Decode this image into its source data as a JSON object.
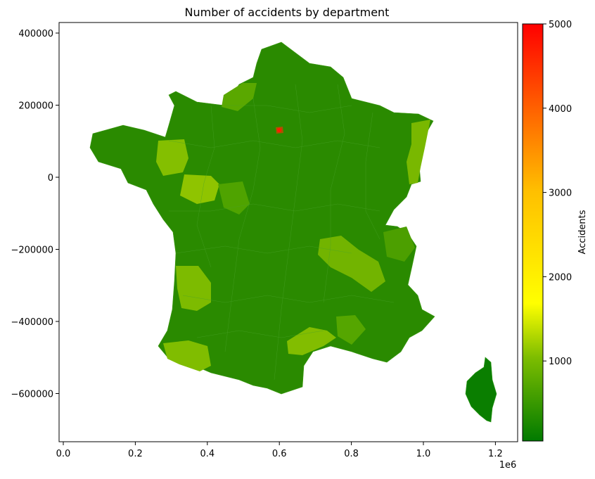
{
  "title": "Number of accidents by department",
  "axes": {
    "x_ticks": [
      {
        "value": 0.0,
        "label": "0.0"
      },
      {
        "value": 0.2,
        "label": "0.2"
      },
      {
        "value": 0.4,
        "label": "0.4"
      },
      {
        "value": 0.6,
        "label": "0.6"
      },
      {
        "value": 0.8,
        "label": "0.8"
      },
      {
        "value": 1.0,
        "label": "1.0"
      },
      {
        "value": 1.2,
        "label": "1.2"
      }
    ],
    "x_offset_label": "1e6",
    "y_ticks": [
      {
        "value": 400000,
        "label": "400000"
      },
      {
        "value": 200000,
        "label": "200000"
      },
      {
        "value": 0,
        "label": "0"
      },
      {
        "value": -200000,
        "label": "−200000"
      },
      {
        "value": -400000,
        "label": "−400000"
      },
      {
        "value": -600000,
        "label": "−600000"
      }
    ]
  },
  "colorbar": {
    "label": "Accidents",
    "min": 50,
    "max": 5000,
    "ticks": [
      {
        "value": 1000,
        "label": "1000"
      },
      {
        "value": 2000,
        "label": "2000"
      },
      {
        "value": 3000,
        "label": "3000"
      },
      {
        "value": 4000,
        "label": "4000"
      },
      {
        "value": 5000,
        "label": "5000"
      }
    ],
    "stops": [
      {
        "offset": 0.0,
        "color": "#007a00"
      },
      {
        "offset": 0.2,
        "color": "#7dbd00"
      },
      {
        "offset": 0.33,
        "color": "#ffff00"
      },
      {
        "offset": 0.6,
        "color": "#ffbf00"
      },
      {
        "offset": 1.0,
        "color": "#ff0000"
      }
    ]
  },
  "regions": [
    {
      "name": "Mainland France",
      "value": 300,
      "color": "#2a8a00"
    },
    {
      "name": "Corsica",
      "value": 150,
      "color": "#0a7e00"
    },
    {
      "name": "Paris",
      "value": 5000,
      "color": "#ff0000"
    },
    {
      "name": "Loire-Atlantique",
      "value": 950,
      "color": "#8fc400"
    },
    {
      "name": "Ille-et-Vilaine",
      "value": 850,
      "color": "#84bf00"
    },
    {
      "name": "Gironde",
      "value": 800,
      "color": "#7dbb00"
    },
    {
      "name": "Pyrenees-Atlantiques",
      "value": 820,
      "color": "#80bd00"
    },
    {
      "name": "Bouches-du-Rhone",
      "value": 800,
      "color": "#82bd00"
    },
    {
      "name": "Bas-Rhin",
      "value": 750,
      "color": "#79b800"
    },
    {
      "name": "Rhone",
      "value": 700,
      "color": "#72b400"
    },
    {
      "name": "Calvados",
      "value": 550,
      "color": "#5aa800"
    }
  ]
}
